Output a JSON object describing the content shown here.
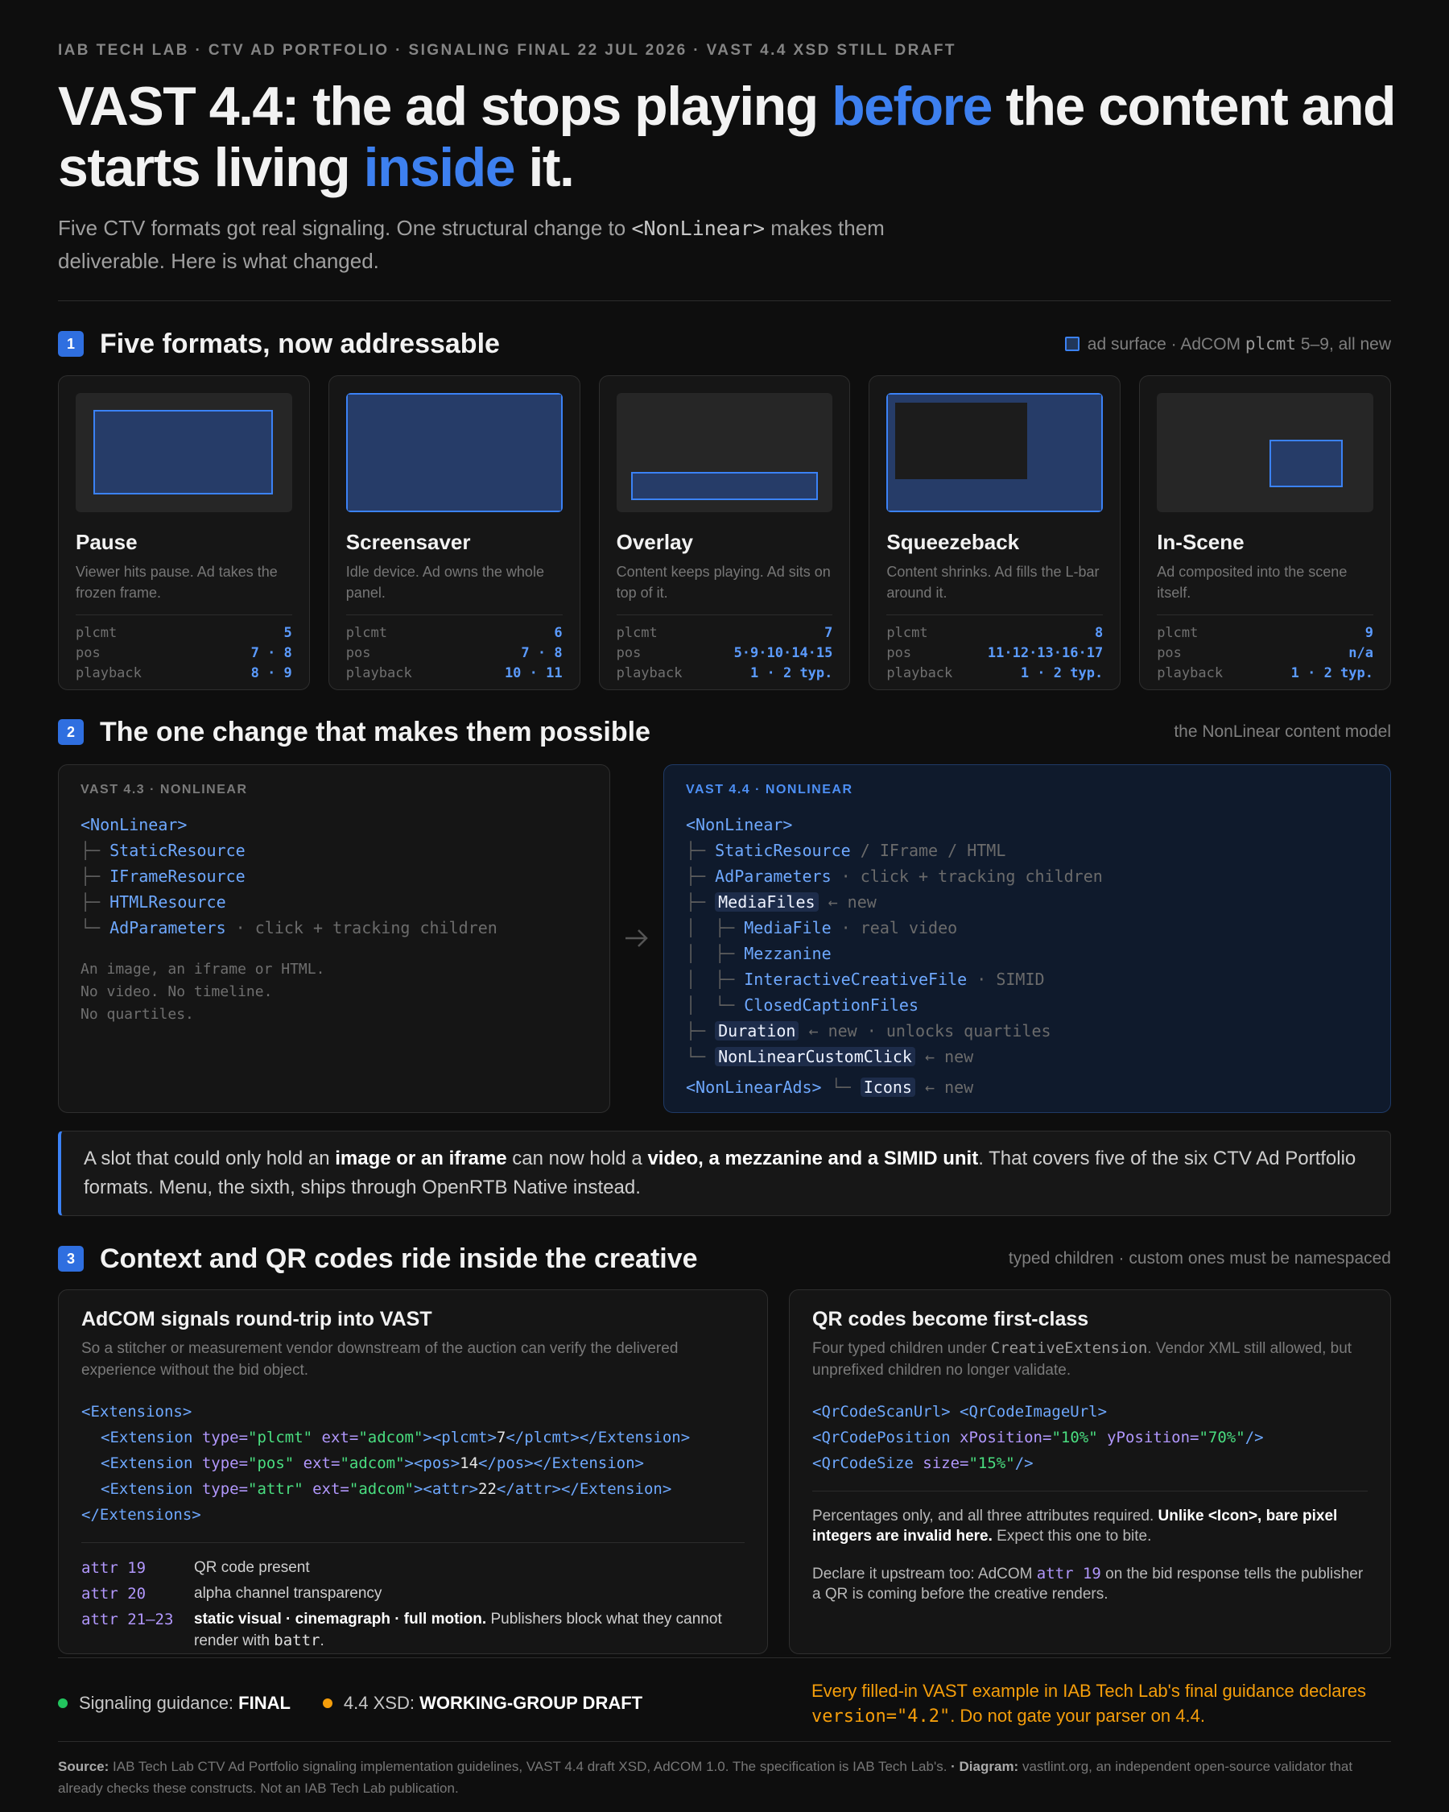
{
  "header": {
    "kicker": "IAB TECH LAB · CTV AD PORTFOLIO · SIGNALING FINAL 22 JUL 2026 · VAST 4.4 XSD STILL DRAFT",
    "title": [
      "VAST 4.4: the ad stops playing ",
      "before",
      " the content and starts living ",
      "inside",
      " it."
    ],
    "subtitle": [
      "Five CTV formats got real signaling. One structural change to ",
      "<NonLinear>",
      " makes them deliverable. Here is what changed."
    ]
  },
  "section1": {
    "number": "1",
    "title": "Five formats, now addressable",
    "legend": [
      "ad surface · AdCOM ",
      "plcmt",
      " 5–9, all new"
    ],
    "formats": [
      {
        "name": "Pause",
        "desc": "Viewer hits pause. Ad takes the frozen frame.",
        "rows": [
          [
            "plcmt",
            5
          ],
          [
            "pos",
            "7 · 8"
          ],
          [
            "playback",
            "8 · 9"
          ]
        ]
      },
      {
        "name": "Screensaver",
        "desc": "Idle device. Ad owns the whole panel.",
        "rows": [
          [
            "plcmt",
            6
          ],
          [
            "pos",
            "7 · 8"
          ],
          [
            "playback",
            "10 · 11"
          ]
        ]
      },
      {
        "name": "Overlay",
        "desc": "Content keeps playing. Ad sits on top of it.",
        "rows": [
          [
            "plcmt",
            7
          ],
          [
            "pos",
            "5·9·10·14·15"
          ],
          [
            "playback",
            "1 · 2 typ."
          ]
        ]
      },
      {
        "name": "Squeezeback",
        "desc": "Content shrinks. Ad fills the L-bar around it.",
        "rows": [
          [
            "plcmt",
            8
          ],
          [
            "pos",
            "11·12·13·16·17"
          ],
          [
            "playback",
            "1 · 2 typ."
          ]
        ]
      },
      {
        "name": "In-Scene",
        "desc": "Ad composited into the scene itself.",
        "rows": [
          [
            "plcmt",
            9
          ],
          [
            "pos",
            "n/a"
          ],
          [
            "playback",
            "1 · 2 typ."
          ]
        ]
      }
    ]
  },
  "section2": {
    "number": "2",
    "title": "The one change that makes them possible",
    "note": "the NonLinear content model",
    "old": {
      "label": "VAST 4.3 · NONLINEAR",
      "lines": [
        [
          "<NonLinear>"
        ],
        [
          "├─ ",
          "StaticResource"
        ],
        [
          "├─ ",
          "IFrameResource"
        ],
        [
          "├─ ",
          "HTMLResource"
        ],
        [
          "└─ ",
          "AdParameters",
          " · click + tracking children"
        ]
      ],
      "note": [
        "An image, an iframe or HTML.",
        "No video. No timeline.",
        "No quartiles."
      ]
    },
    "new": {
      "label": "VAST 4.4 · NONLINEAR",
      "lines": [
        [
          "<NonLinear>"
        ],
        [
          "├─ ",
          "StaticResource",
          " / IFrame / HTML"
        ],
        [
          "├─ ",
          "AdParameters",
          " · click + tracking children"
        ],
        [
          "├─ ",
          "MediaFiles",
          " ← new"
        ],
        [
          "│  ├─ ",
          "MediaFile",
          " · real video"
        ],
        [
          "│  ├─ ",
          "Mezzanine"
        ],
        [
          "│  ├─ ",
          "InteractiveCreativeFile",
          " · SIMID"
        ],
        [
          "│  └─ ",
          "ClosedCaptionFiles"
        ],
        [
          "├─ ",
          "Duration",
          " ← new · unlocks quartiles"
        ],
        [
          "└─ ",
          "NonLinearCustomClick",
          " ← new"
        ],
        [
          "<NonLinearAds>",
          " └─ ",
          "Icons",
          " ← new"
        ]
      ]
    },
    "callout": [
      "A slot that could only hold an ",
      "image or an iframe",
      " can now hold a ",
      "video, a mezzanine and a SIMID unit",
      ". That covers five of the six CTV Ad Portfolio formats. Menu, the sixth, ships through OpenRTB Native instead."
    ]
  },
  "section3": {
    "number": "3",
    "title": "Context and QR codes ride inside the creative",
    "note": "typed children · custom ones must be namespaced",
    "adcom": {
      "title": "AdCOM signals round-trip into VAST",
      "desc": "So a stitcher or measurement vendor downstream of the auction can verify the delivered experience without the bid object.",
      "code": [
        [
          "<Extensions>"
        ],
        [
          "<Extension",
          " type=",
          "\"plcmt\"",
          " ext=",
          "\"adcom\"",
          "><plcmt>",
          "7",
          "</plcmt></Extension>"
        ],
        [
          "<Extension",
          " type=",
          "\"pos\"",
          " ext=",
          "\"adcom\"",
          "><pos>",
          "14",
          "</pos></Extension>"
        ],
        [
          "<Extension",
          " type=",
          "\"attr\"",
          " ext=",
          "\"adcom\"",
          "><attr>",
          "22",
          "</attr></Extension>"
        ],
        [
          "</Extensions>"
        ]
      ],
      "attrs": [
        [
          "attr 19",
          "QR code present"
        ],
        [
          "attr 20",
          "alpha channel transparency"
        ],
        [
          "attr 21–23",
          "static visual · cinemagraph · full motion.",
          " Publishers block what they cannot render with ",
          "battr",
          "."
        ]
      ]
    },
    "qr": {
      "title": "QR codes become first-class",
      "desc": [
        "Four typed children under ",
        "CreativeExtension",
        ". Vendor XML still allowed, but unprefixed children no longer validate."
      ],
      "code": [
        [
          "<QrCodeScanUrl> <QrCodeImageUrl>"
        ],
        [
          "<QrCodePosition",
          " xPosition=",
          "\"10%\"",
          " yPosition=",
          "\"70%\"",
          "/>"
        ],
        [
          "<QrCodeSize",
          " size=",
          "\"15%\"",
          "/>"
        ]
      ],
      "para1": [
        "Percentages only, and all three attributes required. ",
        "Unlike <Icon>, bare pixel integers are invalid here.",
        " Expect this one to bite."
      ],
      "para2": [
        "Declare it upstream too: AdCOM ",
        "attr 19",
        " on the bid response tells the publisher a QR is coming before the creative renders."
      ]
    }
  },
  "status": {
    "final": [
      "Signaling guidance: ",
      "FINAL"
    ],
    "draft": [
      "4.4 XSD: ",
      "WORKING-GROUP DRAFT"
    ],
    "warning": [
      "Every filled-in VAST example in IAB Tech Lab's final guidance declares ",
      "version=\"4.2\"",
      ". Do not gate your parser on 4.4."
    ]
  },
  "footer": [
    "Source:",
    " IAB Tech Lab CTV Ad Portfolio signaling implementation guidelines, VAST 4.4 draft XSD, AdCOM 1.0. The specification is IAB Tech Lab's.",
    " · ",
    "Diagram:",
    " vastlint.org, an independent open-source validator that already checks these constructs. Not an IAB Tech Lab publication."
  ]
}
